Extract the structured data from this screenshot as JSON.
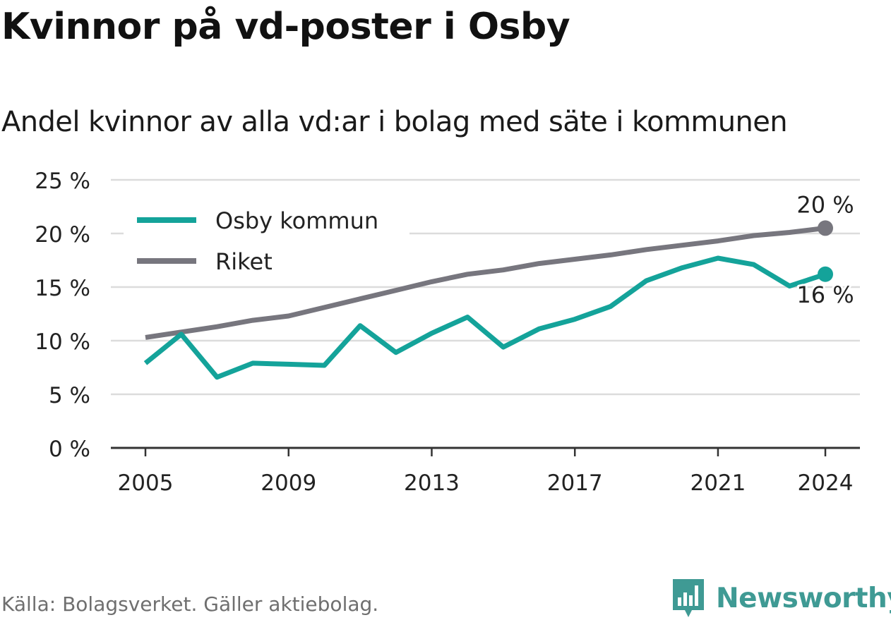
{
  "header": {
    "title": "Kvinnor på vd-poster i Osby",
    "subtitle": "Andel kvinnor av alla vd:ar i bolag med säte i kommunen"
  },
  "footer": {
    "source": "Källa: Bolagsverket. Gäller aktiebolag.",
    "brand": "Newsworthy",
    "brand_color": "#3f9a94"
  },
  "colors": {
    "osby": "#14a39a",
    "riket": "#77767e",
    "grid": "#dcdcdc",
    "axis": "#333333",
    "text": "#222222"
  },
  "chart_data": {
    "type": "line",
    "title": "Kvinnor på vd-poster i Osby",
    "subtitle": "Andel kvinnor av alla vd:ar i bolag med säte i kommunen",
    "x": [
      2005,
      2006,
      2007,
      2008,
      2009,
      2010,
      2011,
      2012,
      2013,
      2014,
      2015,
      2016,
      2017,
      2018,
      2019,
      2020,
      2021,
      2022,
      2023,
      2024
    ],
    "series": [
      {
        "name": "Osby kommun",
        "color": "#14a39a",
        "values": [
          7.9,
          10.6,
          6.6,
          7.9,
          7.8,
          7.7,
          11.4,
          8.9,
          10.7,
          12.2,
          9.4,
          11.1,
          12.0,
          13.2,
          15.6,
          16.8,
          17.7,
          17.1,
          15.1,
          16.2
        ],
        "end_label": "16 %"
      },
      {
        "name": "Riket",
        "color": "#77767e",
        "values": [
          10.3,
          10.8,
          11.3,
          11.9,
          12.3,
          13.1,
          13.9,
          14.7,
          15.5,
          16.2,
          16.6,
          17.2,
          17.6,
          18.0,
          18.5,
          18.9,
          19.3,
          19.8,
          20.1,
          20.5
        ],
        "end_label": "20 %"
      }
    ],
    "x_ticks": [
      2005,
      2009,
      2013,
      2017,
      2021,
      2024
    ],
    "x_tick_labels": [
      "2005",
      "2009",
      "2013",
      "2017",
      "2021",
      "2024"
    ],
    "y_ticks": [
      0,
      5,
      10,
      15,
      20,
      25
    ],
    "y_tick_labels": [
      "0 %",
      "5 %",
      "10 %",
      "15 %",
      "20 %",
      "25 %"
    ],
    "ylim": [
      0,
      25
    ],
    "xlim": [
      2004,
      2025
    ],
    "grid": true,
    "legend": "top-left",
    "xlabel": "",
    "ylabel": ""
  }
}
